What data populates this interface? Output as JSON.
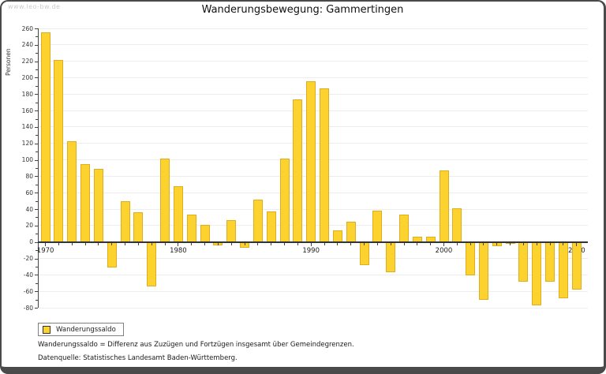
{
  "page": {
    "watermark": "www.leo-bw.de"
  },
  "chart_data": {
    "type": "bar",
    "title": "Wanderungsbewegung: Gammertingen",
    "ylabel": "Personen",
    "xlabel": "",
    "series_name": "Wanderungssaldo",
    "ylim": [
      -80,
      260
    ],
    "y_ticks": [
      260,
      240,
      220,
      200,
      180,
      160,
      140,
      120,
      100,
      80,
      60,
      40,
      20,
      0,
      -20,
      -40,
      -60,
      -80
    ],
    "x_decade_labels": [
      "1970",
      "1980",
      "1990",
      "2000",
      "2010"
    ],
    "grid": true,
    "legend_position": "bottom-left",
    "bar_color": "#FCD32E",
    "bar_border_color": "#E2AC21",
    "categories": [
      1970,
      1971,
      1972,
      1973,
      1974,
      1975,
      1976,
      1977,
      1978,
      1979,
      1980,
      1981,
      1982,
      1983,
      1984,
      1985,
      1986,
      1987,
      1988,
      1989,
      1990,
      1991,
      1992,
      1993,
      1994,
      1995,
      1996,
      1997,
      1998,
      1999,
      2000,
      2001,
      2002,
      2003,
      2004,
      2005,
      2006,
      2007,
      2008,
      2009,
      2010
    ],
    "values": [
      255,
      222,
      123,
      95,
      89,
      -31,
      50,
      36,
      -54,
      102,
      68,
      33,
      21,
      -4,
      27,
      -7,
      52,
      37,
      102,
      174,
      196,
      187,
      14,
      25,
      -28,
      38,
      -37,
      33,
      6,
      6,
      87,
      41,
      -41,
      -70,
      -5,
      -1,
      -48,
      -77,
      -48,
      -68,
      -58
    ]
  },
  "legend": {
    "label": "Wanderungssaldo"
  },
  "footer": {
    "line1": "Wanderungssaldo = Differenz aus Zuzügen und Fortzügen insgesamt über Gemeindegrenzen.",
    "line2": "Datenquelle: Statistisches Landesamt Baden-Württemberg."
  }
}
